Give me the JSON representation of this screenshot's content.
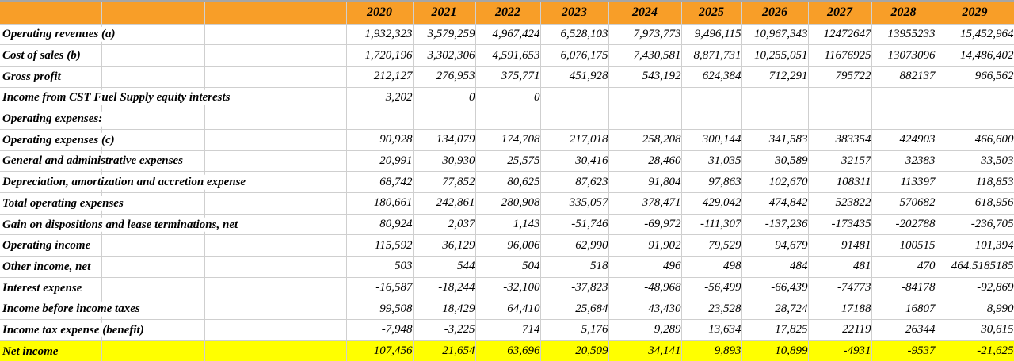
{
  "colors": {
    "header_bg": "#F89E28",
    "highlight_bg": "#FFFF00",
    "gridline": "#CFCFCF",
    "total_rule": "#000000"
  },
  "table": {
    "years": [
      "2020",
      "2021",
      "2022",
      "2023",
      "2024",
      "2025",
      "2026",
      "2027",
      "2028",
      "2029"
    ],
    "rows": [
      {
        "label": "Operating revenues (a)",
        "values": [
          "1,932,323",
          "3,579,259",
          "4,967,424",
          "6,528,103",
          "7,973,773",
          "9,496,115",
          "10,967,343",
          "12472647",
          "13955233",
          "15,452,964"
        ],
        "thick_bottom": false,
        "highlight": false
      },
      {
        "label": "Cost of sales (b)",
        "values": [
          "1,720,196",
          "3,302,306",
          "4,591,653",
          "6,076,175",
          "7,430,581",
          "8,871,731",
          "10,255,051",
          "11676925",
          "13073096",
          "14,486,402"
        ],
        "thick_bottom": true,
        "highlight": false
      },
      {
        "label": "Gross profit",
        "values": [
          "212,127",
          "276,953",
          "375,771",
          "451,928",
          "543,192",
          "624,384",
          "712,291",
          "795722",
          "882137",
          "966,562"
        ],
        "thick_bottom": false,
        "highlight": false
      },
      {
        "label": "Income from CST Fuel Supply equity interests",
        "values": [
          "3,202",
          "0",
          "0",
          "",
          "",
          "",
          "",
          "",
          "",
          ""
        ],
        "thick_bottom": false,
        "highlight": false
      },
      {
        "label": "Operating expenses:",
        "values": [
          "",
          "",
          "",
          "",
          "",
          "",
          "",
          "",
          "",
          ""
        ],
        "thick_bottom": false,
        "highlight": false
      },
      {
        "label": "Operating expenses (c)",
        "values": [
          "90,928",
          "134,079",
          "174,708",
          "217,018",
          "258,208",
          "300,144",
          "341,583",
          "383354",
          "424903",
          "466,600"
        ],
        "thick_bottom": false,
        "highlight": false
      },
      {
        "label": "General and administrative expenses",
        "values": [
          "20,991",
          "30,930",
          "25,575",
          "30,416",
          "28,460",
          "31,035",
          "30,589",
          "32157",
          "32383",
          "33,503"
        ],
        "thick_bottom": false,
        "highlight": false
      },
      {
        "label": "Depreciation, amortization and accretion expense",
        "values": [
          "68,742",
          "77,852",
          "80,625",
          "87,623",
          "91,804",
          "97,863",
          "102,670",
          "108311",
          "113397",
          "118,853"
        ],
        "thick_bottom": true,
        "highlight": false
      },
      {
        "label": "Total operating expenses",
        "values": [
          "180,661",
          "242,861",
          "280,908",
          "335,057",
          "378,471",
          "429,042",
          "474,842",
          "523822",
          "570682",
          "618,956"
        ],
        "thick_bottom": false,
        "highlight": false
      },
      {
        "label": "Gain on dispositions and lease terminations, net",
        "values": [
          "80,924",
          "2,037",
          "1,143",
          "-51,746",
          "-69,972",
          "-111,307",
          "-137,236",
          "-173435",
          "-202788",
          "-236,705"
        ],
        "thick_bottom": true,
        "highlight": false
      },
      {
        "label": "Operating income",
        "values": [
          "115,592",
          "36,129",
          "96,006",
          "62,990",
          "91,902",
          "79,529",
          "94,679",
          "91481",
          "100515",
          "101,394"
        ],
        "thick_bottom": false,
        "highlight": false
      },
      {
        "label": "Other income, net",
        "values": [
          "503",
          "544",
          "504",
          "518",
          "496",
          "498",
          "484",
          "481",
          "470",
          "464.5185185"
        ],
        "thick_bottom": false,
        "highlight": false
      },
      {
        "label": "Interest expense",
        "values": [
          "-16,587",
          "-18,244",
          "-32,100",
          "-37,823",
          "-48,968",
          "-56,499",
          "-66,439",
          "-74773",
          "-84178",
          "-92,869"
        ],
        "thick_bottom": true,
        "highlight": false
      },
      {
        "label": "Income before income taxes",
        "values": [
          "99,508",
          "18,429",
          "64,410",
          "25,684",
          "43,430",
          "23,528",
          "28,724",
          "17188",
          "16807",
          "8,990"
        ],
        "thick_bottom": false,
        "highlight": false
      },
      {
        "label": "Income tax expense (benefit)",
        "values": [
          "-7,948",
          "-3,225",
          "714",
          "5,176",
          "9,289",
          "13,634",
          "17,825",
          "22119",
          "26344",
          "30,615"
        ],
        "thick_bottom": true,
        "highlight": false
      },
      {
        "label": "Net income",
        "values": [
          "107,456",
          "21,654",
          "63,696",
          "20,509",
          "34,141",
          "9,893",
          "10,899",
          "-4931",
          "-9537",
          "-21,625"
        ],
        "thick_bottom": false,
        "highlight": true
      }
    ]
  }
}
